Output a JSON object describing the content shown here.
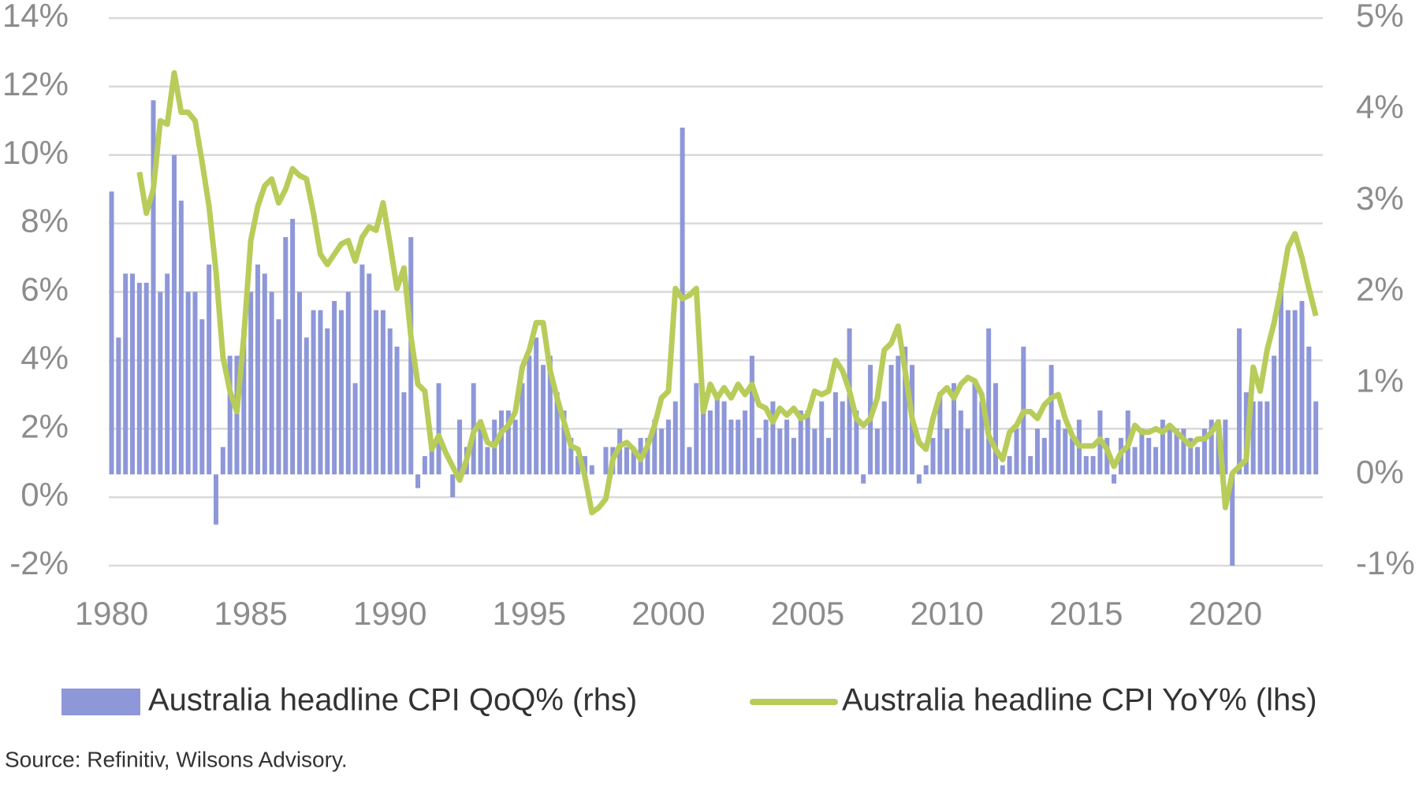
{
  "chart_data": {
    "type": "combo",
    "x": [
      1980,
      1980.25,
      1980.5,
      1980.75,
      1981,
      1981.25,
      1981.5,
      1981.75,
      1982,
      1982.25,
      1982.5,
      1982.75,
      1983,
      1983.25,
      1983.5,
      1983.75,
      1984,
      1984.25,
      1984.5,
      1984.75,
      1985,
      1985.25,
      1985.5,
      1985.75,
      1986,
      1986.25,
      1986.5,
      1986.75,
      1987,
      1987.25,
      1987.5,
      1987.75,
      1988,
      1988.25,
      1988.5,
      1988.75,
      1989,
      1989.25,
      1989.5,
      1989.75,
      1990,
      1990.25,
      1990.5,
      1990.75,
      1991,
      1991.25,
      1991.5,
      1991.75,
      1992,
      1992.25,
      1992.5,
      1992.75,
      1993,
      1993.25,
      1993.5,
      1993.75,
      1994,
      1994.25,
      1994.5,
      1994.75,
      1995,
      1995.25,
      1995.5,
      1995.75,
      1996,
      1996.25,
      1996.5,
      1996.75,
      1997,
      1997.25,
      1997.5,
      1997.75,
      1998,
      1998.25,
      1998.5,
      1998.75,
      1999,
      1999.25,
      1999.5,
      1999.75,
      2000,
      2000.25,
      2000.5,
      2000.75,
      2001,
      2001.25,
      2001.5,
      2001.75,
      2002,
      2002.25,
      2002.5,
      2002.75,
      2003,
      2003.25,
      2003.5,
      2003.75,
      2004,
      2004.25,
      2004.5,
      2004.75,
      2005,
      2005.25,
      2005.5,
      2005.75,
      2006,
      2006.25,
      2006.5,
      2006.75,
      2007,
      2007.25,
      2007.5,
      2007.75,
      2008,
      2008.25,
      2008.5,
      2008.75,
      2009,
      2009.25,
      2009.5,
      2009.75,
      2010,
      2010.25,
      2010.5,
      2010.75,
      2011,
      2011.25,
      2011.5,
      2011.75,
      2012,
      2012.25,
      2012.5,
      2012.75,
      2013,
      2013.25,
      2013.5,
      2013.75,
      2014,
      2014.25,
      2014.5,
      2014.75,
      2015,
      2015.25,
      2015.5,
      2015.75,
      2016,
      2016.25,
      2016.5,
      2016.75,
      2017,
      2017.25,
      2017.5,
      2017.75,
      2018,
      2018.25,
      2018.5,
      2018.75,
      2019,
      2019.25,
      2019.5,
      2019.75,
      2020,
      2020.25,
      2020.5,
      2020.75,
      2021,
      2021.25,
      2021.5,
      2021.75,
      2022,
      2022.25,
      2022.5,
      2022.75,
      2023,
      2023.25
    ],
    "series": [
      {
        "name": "Australia headline CPI QoQ% (rhs)",
        "type": "bar",
        "axis": "y2",
        "color": "#8e97d8",
        "values": [
          3.1,
          1.5,
          2.2,
          2.2,
          2.1,
          2.1,
          4.1,
          2.0,
          2.2,
          3.5,
          3.0,
          2.0,
          2.0,
          1.7,
          2.3,
          -0.55,
          0.3,
          1.3,
          1.3,
          1.6,
          2.0,
          2.3,
          2.2,
          2.0,
          1.7,
          2.6,
          2.8,
          2.0,
          1.5,
          1.8,
          1.8,
          1.6,
          1.9,
          1.8,
          2.0,
          1.0,
          2.3,
          2.2,
          1.8,
          1.8,
          1.6,
          1.4,
          0.9,
          2.6,
          -0.15,
          0.2,
          0.3,
          1.0,
          0.0,
          -0.25,
          0.6,
          0.3,
          1.0,
          0.6,
          0.3,
          0.6,
          0.7,
          0.7,
          0.6,
          1.0,
          1.3,
          1.5,
          1.2,
          1.3,
          0.9,
          0.7,
          0.4,
          0.2,
          0.2,
          0.1,
          0.0,
          0.3,
          0.3,
          0.5,
          0.3,
          0.3,
          0.4,
          0.4,
          0.6,
          0.5,
          0.6,
          0.8,
          3.8,
          0.3,
          1.0,
          0.9,
          0.7,
          0.9,
          0.8,
          0.6,
          0.6,
          0.7,
          1.3,
          0.4,
          0.6,
          0.8,
          0.5,
          0.6,
          0.4,
          0.7,
          0.7,
          0.5,
          0.8,
          0.4,
          0.9,
          0.8,
          1.6,
          0.7,
          -0.1,
          1.2,
          0.5,
          0.8,
          1.2,
          1.3,
          1.4,
          1.2,
          -0.1,
          0.1,
          0.4,
          0.9,
          0.5,
          1.0,
          0.7,
          0.5,
          1.0,
          0.8,
          1.6,
          1.0,
          0.1,
          0.2,
          0.5,
          1.4,
          0.2,
          0.5,
          0.4,
          1.2,
          0.6,
          0.5,
          0.4,
          0.6,
          0.2,
          0.2,
          0.7,
          0.4,
          -0.1,
          0.4,
          0.7,
          0.3,
          0.5,
          0.4,
          0.3,
          0.6,
          0.5,
          0.5,
          0.5,
          0.4,
          0.3,
          0.5,
          0.6,
          0.6,
          0.6,
          -1.0,
          1.6,
          0.9,
          0.8,
          0.8,
          0.8,
          1.3,
          2.1,
          1.8,
          1.8,
          1.9,
          1.4,
          0.8
        ]
      },
      {
        "name": "Australia headline CPI YoY% (lhs)",
        "type": "line",
        "color": "#b8cc5a",
        "values": [
          null,
          null,
          null,
          null,
          9.5,
          8.3,
          9.0,
          11.0,
          10.9,
          12.4,
          11.25,
          11.25,
          11.0,
          9.8,
          8.5,
          6.6,
          4.1,
          3.1,
          2.5,
          4.7,
          7.5,
          8.5,
          9.1,
          9.3,
          8.6,
          9.0,
          9.6,
          9.4,
          9.3,
          8.3,
          7.1,
          6.8,
          7.1,
          7.4,
          7.5,
          6.9,
          7.6,
          7.9,
          7.8,
          8.6,
          7.4,
          6.1,
          6.7,
          4.7,
          3.3,
          3.1,
          1.4,
          1.8,
          1.3,
          0.9,
          0.5,
          1.1,
          1.9,
          2.2,
          1.6,
          1.5,
          1.9,
          2.1,
          2.5,
          3.8,
          4.3,
          5.1,
          5.1,
          3.7,
          2.9,
          2.2,
          1.5,
          1.4,
          0.6,
          -0.45,
          -0.3,
          -0.05,
          1.1,
          1.5,
          1.6,
          1.4,
          1.1,
          1.5,
          2.1,
          2.9,
          3.1,
          6.1,
          5.8,
          5.9,
          6.1,
          2.5,
          3.3,
          2.9,
          3.2,
          2.9,
          3.3,
          3.0,
          3.3,
          2.7,
          2.6,
          2.2,
          2.6,
          2.4,
          2.6,
          2.3,
          2.4,
          3.1,
          3.0,
          3.1,
          4.0,
          3.7,
          3.1,
          2.3,
          2.1,
          2.3,
          2.9,
          4.3,
          4.5,
          5.0,
          3.7,
          2.3,
          1.6,
          1.4,
          2.3,
          3.0,
          3.2,
          2.9,
          3.3,
          3.5,
          3.4,
          3.0,
          1.8,
          1.4,
          1.1,
          1.9,
          2.1,
          2.5,
          2.5,
          2.3,
          2.7,
          2.9,
          3.0,
          2.3,
          1.8,
          1.5,
          1.5,
          1.5,
          1.7,
          1.4,
          0.9,
          1.3,
          1.5,
          2.1,
          1.9,
          1.9,
          2.0,
          1.9,
          2.1,
          1.9,
          1.7,
          1.5,
          1.7,
          1.7,
          1.9,
          2.2,
          -0.3,
          0.7,
          0.9,
          1.1,
          3.8,
          3.1,
          4.3,
          5.1,
          6.1,
          7.3,
          7.7,
          7.0,
          6.1,
          5.3
        ]
      }
    ],
    "xlim": [
      1979.9,
      2023.5
    ],
    "xticks": [
      1980,
      1985,
      1990,
      1995,
      2000,
      2005,
      2010,
      2015,
      2020
    ],
    "ylim": [
      -2,
      14
    ],
    "yticks": [
      {
        "value": -2,
        "label": "-2%"
      },
      {
        "value": 0,
        "label": "0%"
      },
      {
        "value": 2,
        "label": "2%"
      },
      {
        "value": 4,
        "label": "4%"
      },
      {
        "value": 6,
        "label": "6%"
      },
      {
        "value": 8,
        "label": "8%"
      },
      {
        "value": 10,
        "label": "10%"
      },
      {
        "value": 12,
        "label": "12%"
      },
      {
        "value": 14,
        "label": "14%"
      }
    ],
    "y2lim": [
      -1,
      5
    ],
    "y2ticks": [
      {
        "value": -1,
        "label": "-1%"
      },
      {
        "value": 0,
        "label": "0%"
      },
      {
        "value": 1,
        "label": "1%"
      },
      {
        "value": 2,
        "label": "2%"
      },
      {
        "value": 3,
        "label": "3%"
      },
      {
        "value": 4,
        "label": "4%"
      },
      {
        "value": 5,
        "label": "5%"
      }
    ],
    "grid": true,
    "legend": "bottom",
    "source": "Source: Refinitiv, Wilsons Advisory."
  }
}
